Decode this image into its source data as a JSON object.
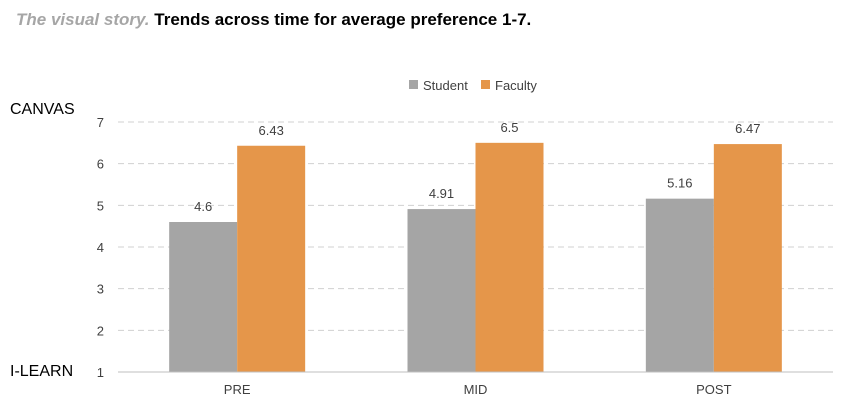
{
  "title": {
    "lead": "The visual story.",
    "main": "Trends across time for average preference 1-7."
  },
  "side_labels": {
    "top": "CANVAS",
    "bottom": "I-LEARN"
  },
  "colors": {
    "student": "#a5a5a5",
    "faculty": "#e5964a",
    "grid": "#d0d0d0",
    "text": "#404040"
  },
  "chart_data": {
    "type": "bar",
    "categories": [
      "PRE",
      "MID",
      "POST"
    ],
    "series": [
      {
        "name": "Student",
        "values": [
          4.6,
          4.91,
          5.16
        ],
        "labels": [
          "4.6",
          "4.91",
          "5.16"
        ]
      },
      {
        "name": "Faculty",
        "values": [
          6.43,
          6.5,
          6.47
        ],
        "labels": [
          "6.43",
          "6.5",
          "6.47"
        ]
      }
    ],
    "yticks": [
      "1",
      "2",
      "3",
      "4",
      "5",
      "6",
      "7"
    ],
    "ylim": [
      1,
      7
    ],
    "grid": true,
    "legend": "top-center"
  }
}
